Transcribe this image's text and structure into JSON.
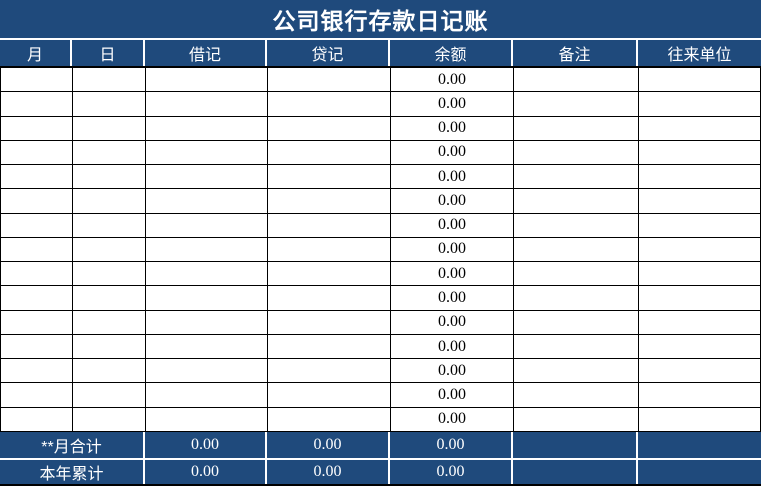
{
  "title": "公司银行存款日记账",
  "colors": {
    "primary_blue": "#1F4A7C",
    "border_black": "#000000",
    "row_background": "#FFFFFF",
    "text_light": "#FFFFFF",
    "text_dark": "#000000"
  },
  "table": {
    "columns": [
      {
        "key": "month",
        "label": "月"
      },
      {
        "key": "day",
        "label": "日"
      },
      {
        "key": "debit",
        "label": "借记"
      },
      {
        "key": "credit",
        "label": "贷记"
      },
      {
        "key": "balance",
        "label": "余额"
      },
      {
        "key": "remark",
        "label": "备注"
      },
      {
        "key": "counterparty",
        "label": "往来单位"
      }
    ],
    "rows": [
      {
        "month": "",
        "day": "",
        "debit": "",
        "credit": "",
        "balance": "0.00",
        "remark": "",
        "counterparty": ""
      },
      {
        "month": "",
        "day": "",
        "debit": "",
        "credit": "",
        "balance": "0.00",
        "remark": "",
        "counterparty": ""
      },
      {
        "month": "",
        "day": "",
        "debit": "",
        "credit": "",
        "balance": "0.00",
        "remark": "",
        "counterparty": ""
      },
      {
        "month": "",
        "day": "",
        "debit": "",
        "credit": "",
        "balance": "0.00",
        "remark": "",
        "counterparty": ""
      },
      {
        "month": "",
        "day": "",
        "debit": "",
        "credit": "",
        "balance": "0.00",
        "remark": "",
        "counterparty": ""
      },
      {
        "month": "",
        "day": "",
        "debit": "",
        "credit": "",
        "balance": "0.00",
        "remark": "",
        "counterparty": ""
      },
      {
        "month": "",
        "day": "",
        "debit": "",
        "credit": "",
        "balance": "0.00",
        "remark": "",
        "counterparty": ""
      },
      {
        "month": "",
        "day": "",
        "debit": "",
        "credit": "",
        "balance": "0.00",
        "remark": "",
        "counterparty": ""
      },
      {
        "month": "",
        "day": "",
        "debit": "",
        "credit": "",
        "balance": "0.00",
        "remark": "",
        "counterparty": ""
      },
      {
        "month": "",
        "day": "",
        "debit": "",
        "credit": "",
        "balance": "0.00",
        "remark": "",
        "counterparty": ""
      },
      {
        "month": "",
        "day": "",
        "debit": "",
        "credit": "",
        "balance": "0.00",
        "remark": "",
        "counterparty": ""
      },
      {
        "month": "",
        "day": "",
        "debit": "",
        "credit": "",
        "balance": "0.00",
        "remark": "",
        "counterparty": ""
      },
      {
        "month": "",
        "day": "",
        "debit": "",
        "credit": "",
        "balance": "0.00",
        "remark": "",
        "counterparty": ""
      },
      {
        "month": "",
        "day": "",
        "debit": "",
        "credit": "",
        "balance": "0.00",
        "remark": "",
        "counterparty": ""
      },
      {
        "month": "",
        "day": "",
        "debit": "",
        "credit": "",
        "balance": "0.00",
        "remark": "",
        "counterparty": ""
      }
    ],
    "totals": [
      {
        "label": "**月合计",
        "debit": "0.00",
        "credit": "0.00",
        "balance": "0.00",
        "remark": "",
        "counterparty": ""
      },
      {
        "label": "本年累计",
        "debit": "0.00",
        "credit": "0.00",
        "balance": "0.00",
        "remark": "",
        "counterparty": ""
      }
    ]
  }
}
